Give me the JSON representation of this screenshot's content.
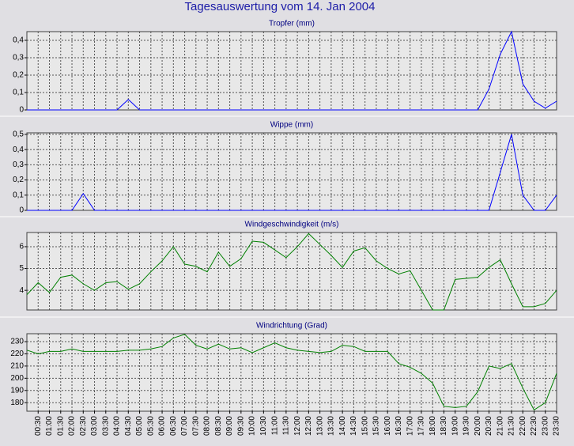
{
  "title": "Tagesauswertung vom 14. Jan 2004",
  "chart_data": [
    {
      "type": "line",
      "title": "Tropfer (mm)",
      "color": "#0000ff",
      "grid": true,
      "ylim": [
        0,
        0.45
      ],
      "yticks": [
        0,
        {
          "value": 0.1,
          "label": "0,1"
        },
        {
          "value": 0.2,
          "label": "0,2"
        },
        {
          "value": 0.3,
          "label": "0,3"
        },
        {
          "value": 0.4,
          "label": "0,4"
        }
      ],
      "values": [
        0,
        0,
        0,
        0,
        0,
        0,
        0,
        0,
        0,
        0.06,
        0,
        0,
        0,
        0,
        0,
        0,
        0,
        0,
        0,
        0,
        0,
        0,
        0,
        0,
        0,
        0,
        0,
        0,
        0,
        0,
        0,
        0,
        0,
        0,
        0,
        0,
        0,
        0,
        0,
        0,
        0,
        0.12,
        0.32,
        0.45,
        0.15,
        0.05,
        0.01,
        0.05
      ]
    },
    {
      "type": "line",
      "title": "Wippe (mm)",
      "color": "#0000ff",
      "grid": true,
      "ylim": [
        0,
        0.51
      ],
      "yticks": [
        0,
        {
          "value": 0.1,
          "label": "0,1"
        },
        {
          "value": 0.2,
          "label": "0,2"
        },
        {
          "value": 0.3,
          "label": "0,3"
        },
        {
          "value": 0.4,
          "label": "0,4"
        },
        {
          "value": 0.5,
          "label": "0,5"
        }
      ],
      "values": [
        0,
        0,
        0,
        0,
        0,
        0.11,
        0,
        0,
        0,
        0,
        0,
        0,
        0,
        0,
        0,
        0,
        0,
        0,
        0,
        0,
        0,
        0,
        0,
        0,
        0,
        0,
        0,
        0,
        0,
        0,
        0,
        0,
        0,
        0,
        0,
        0,
        0,
        0,
        0,
        0,
        0,
        0,
        0.25,
        0.5,
        0.1,
        0,
        0,
        0.1
      ]
    },
    {
      "type": "line",
      "title": "Windgeschwindigkeit (m/s)",
      "color": "#008000",
      "grid": true,
      "ylim": [
        3.1,
        6.65
      ],
      "yticks": [
        4,
        5,
        6
      ],
      "values": [
        3.8,
        4.35,
        3.9,
        4.6,
        4.7,
        4.3,
        4.0,
        4.35,
        4.4,
        4.05,
        4.3,
        4.85,
        5.35,
        6.0,
        5.2,
        5.1,
        4.85,
        5.75,
        5.1,
        5.45,
        6.25,
        6.2,
        5.85,
        5.5,
        6.0,
        6.6,
        6.1,
        5.6,
        5.05,
        5.8,
        5.95,
        5.35,
        5.0,
        4.75,
        4.9,
        4.0,
        3.1,
        3.1,
        4.5,
        4.55,
        4.6,
        5.05,
        5.4,
        4.3,
        3.25,
        3.25,
        3.4,
        4.0
      ]
    },
    {
      "type": "line",
      "title": "Windrichtung (Grad)",
      "color": "#008000",
      "grid": true,
      "ylim": [
        173,
        236.5
      ],
      "yticks": [
        180,
        190,
        200,
        210,
        220,
        230
      ],
      "categories": [
        null,
        "00:30",
        "01:00",
        "01:30",
        "02:00",
        "02:30",
        "03:00",
        "03:30",
        "04:00",
        "04:30",
        "05:00",
        "05:30",
        "06:00",
        "06:30",
        "07:00",
        "07:30",
        "08:00",
        "08:30",
        "09:00",
        "09:30",
        "10:00",
        "10:30",
        "11:00",
        "11:30",
        "12:00",
        "12:30",
        "13:00",
        "13:30",
        "14:00",
        "14:30",
        "15:00",
        "15:30",
        "16:00",
        "16:30",
        "17:00",
        "17:30",
        "18:00",
        "18:30",
        "19:00",
        "19:30",
        "20:00",
        "20:30",
        "21:00",
        "21:30",
        "22:00",
        "22:30",
        "23:00",
        "23:30"
      ],
      "values": [
        223,
        220,
        222,
        222,
        224,
        222,
        222,
        222,
        222,
        223,
        223,
        224,
        226,
        233,
        236,
        227,
        224,
        228,
        224,
        225,
        221,
        225,
        229,
        225,
        223,
        222,
        221,
        222,
        227,
        226,
        222,
        222,
        222,
        212,
        209,
        204,
        196,
        177,
        176,
        177,
        189,
        210,
        208,
        212,
        192,
        174,
        180,
        204
      ]
    }
  ]
}
